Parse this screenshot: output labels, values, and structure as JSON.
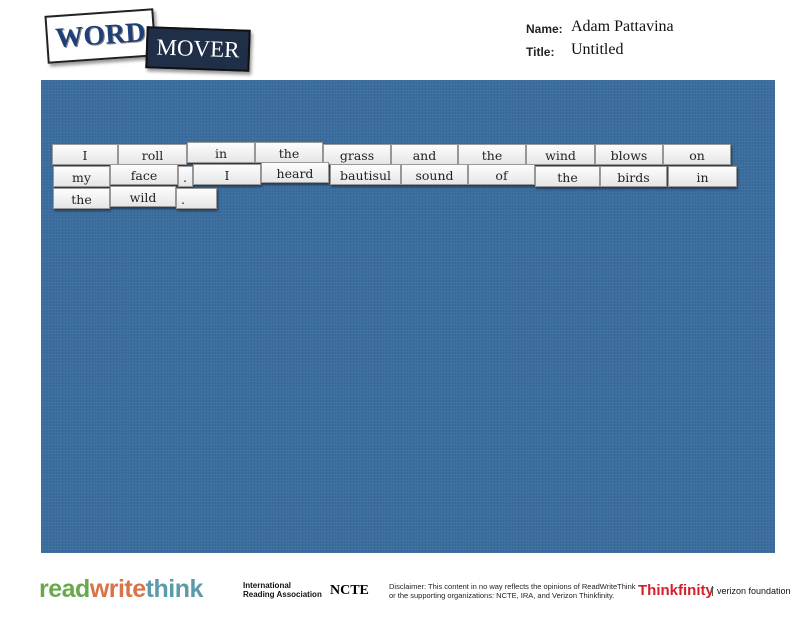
{
  "logo": {
    "word": "WORD",
    "mover": "MOVER"
  },
  "header": {
    "name_label": "Name:",
    "name_value": "Adam Pattavina",
    "title_label": "Title:",
    "title_value": "Untitled"
  },
  "tiles": [
    "I",
    "roll",
    "in",
    "the",
    "grass",
    "and",
    "the",
    "wind",
    "blows",
    "on",
    "my",
    "face",
    ".",
    "I",
    "heard",
    "bautisul",
    "sound",
    "of",
    "the",
    "birds",
    "in",
    "the",
    "wild",
    "."
  ],
  "footer": {
    "rwt_read": "read",
    "rwt_write": "write",
    "rwt_think": "think",
    "ira": "International Reading Association",
    "ncte": "NCTE",
    "disclaimer": "Disclaimer: This content in no way reflects the opinions of ReadWriteThink or the supporting organizations: NCTE, IRA, and Verizon Thinkfinity.",
    "thinkfinity": "Thinkfinity",
    "verizon": "verizon foundation"
  },
  "colors": {
    "board": "#3b6d9e",
    "read": "#6aa84f",
    "write": "#d9734a",
    "think": "#5b9aaa"
  }
}
